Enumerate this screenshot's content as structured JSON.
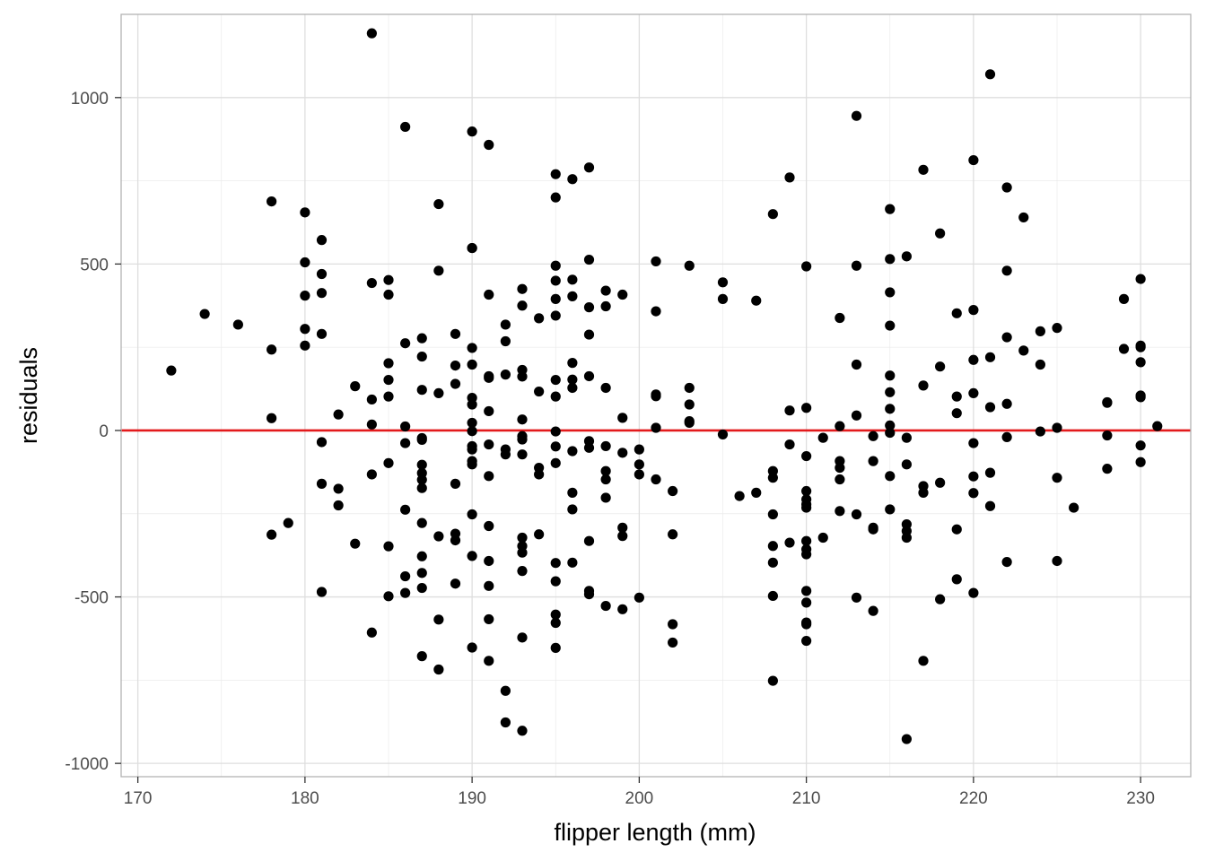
{
  "chart_data": {
    "type": "scatter",
    "title": "",
    "xlabel": "flipper length (mm)",
    "ylabel": "residuals",
    "xlim": [
      169,
      233
    ],
    "ylim": [
      -1040,
      1250
    ],
    "xticks": [
      170,
      180,
      190,
      200,
      210,
      220,
      230
    ],
    "yticks": [
      -1000,
      -500,
      0,
      500,
      1000
    ],
    "xtick_labels": [
      "170",
      "180",
      "190",
      "200",
      "210",
      "220",
      "230"
    ],
    "ytick_labels": [
      "-1000",
      "-500",
      "0",
      "500",
      "1000"
    ],
    "grid": true,
    "reference_line": {
      "y": 0,
      "color": "#e31a1c"
    },
    "point_color": "#000000",
    "points": [
      [
        172,
        180
      ],
      [
        174,
        350
      ],
      [
        176,
        318
      ],
      [
        178,
        688
      ],
      [
        178,
        243
      ],
      [
        178,
        37
      ],
      [
        178,
        -313
      ],
      [
        179,
        -278
      ],
      [
        180,
        655
      ],
      [
        180,
        505
      ],
      [
        180,
        405
      ],
      [
        180,
        305
      ],
      [
        180,
        255
      ],
      [
        181,
        572
      ],
      [
        181,
        470
      ],
      [
        181,
        413
      ],
      [
        181,
        290
      ],
      [
        181,
        -35
      ],
      [
        181,
        -160
      ],
      [
        181,
        -485
      ],
      [
        182,
        48
      ],
      [
        182,
        -175
      ],
      [
        182,
        -225
      ],
      [
        183,
        133
      ],
      [
        183,
        -340
      ],
      [
        184,
        443
      ],
      [
        184,
        93
      ],
      [
        184,
        18
      ],
      [
        184,
        -132
      ],
      [
        184,
        -607
      ],
      [
        184,
        1193
      ],
      [
        185,
        452
      ],
      [
        185,
        408
      ],
      [
        185,
        202
      ],
      [
        185,
        152
      ],
      [
        185,
        102
      ],
      [
        185,
        -98
      ],
      [
        185,
        -348
      ],
      [
        185,
        -498
      ],
      [
        186,
        912
      ],
      [
        186,
        262
      ],
      [
        186,
        12
      ],
      [
        186,
        -38
      ],
      [
        186,
        -238
      ],
      [
        186,
        -438
      ],
      [
        186,
        -488
      ],
      [
        187,
        277
      ],
      [
        187,
        222
      ],
      [
        187,
        122
      ],
      [
        187,
        -23
      ],
      [
        187,
        -28
      ],
      [
        187,
        -103
      ],
      [
        187,
        -128
      ],
      [
        187,
        -148
      ],
      [
        187,
        -173
      ],
      [
        187,
        -278
      ],
      [
        187,
        -378
      ],
      [
        187,
        -428
      ],
      [
        187,
        -473
      ],
      [
        187,
        -678
      ],
      [
        188,
        680
      ],
      [
        188,
        480
      ],
      [
        188,
        112
      ],
      [
        188,
        -318
      ],
      [
        188,
        -568
      ],
      [
        188,
        -718
      ],
      [
        189,
        290
      ],
      [
        189,
        195
      ],
      [
        189,
        140
      ],
      [
        189,
        -160
      ],
      [
        189,
        -310
      ],
      [
        189,
        -330
      ],
      [
        189,
        -460
      ],
      [
        190,
        898
      ],
      [
        190,
        548
      ],
      [
        190,
        548
      ],
      [
        190,
        248
      ],
      [
        190,
        198
      ],
      [
        190,
        98
      ],
      [
        190,
        78
      ],
      [
        190,
        23
      ],
      [
        190,
        -2
      ],
      [
        190,
        -47
      ],
      [
        190,
        -57
      ],
      [
        190,
        -92
      ],
      [
        190,
        -102
      ],
      [
        190,
        -252
      ],
      [
        190,
        -377
      ],
      [
        190,
        -652
      ],
      [
        191,
        858
      ],
      [
        191,
        408
      ],
      [
        191,
        163
      ],
      [
        191,
        158
      ],
      [
        191,
        58
      ],
      [
        191,
        -42
      ],
      [
        191,
        -137
      ],
      [
        191,
        -287
      ],
      [
        191,
        -392
      ],
      [
        191,
        -467
      ],
      [
        191,
        -567
      ],
      [
        191,
        -692
      ],
      [
        192,
        318
      ],
      [
        192,
        268
      ],
      [
        192,
        168
      ],
      [
        192,
        -57
      ],
      [
        192,
        -72
      ],
      [
        192,
        -782
      ],
      [
        192,
        -877
      ],
      [
        193,
        425
      ],
      [
        193,
        375
      ],
      [
        193,
        182
      ],
      [
        193,
        162
      ],
      [
        193,
        33
      ],
      [
        193,
        -17
      ],
      [
        193,
        -27
      ],
      [
        193,
        -72
      ],
      [
        193,
        -322
      ],
      [
        193,
        -347
      ],
      [
        193,
        -367
      ],
      [
        193,
        -422
      ],
      [
        193,
        -622
      ],
      [
        193,
        -902
      ],
      [
        194,
        337
      ],
      [
        194,
        117
      ],
      [
        194,
        -112
      ],
      [
        194,
        -132
      ],
      [
        194,
        -312
      ],
      [
        195,
        770
      ],
      [
        195,
        700
      ],
      [
        195,
        495
      ],
      [
        195,
        450
      ],
      [
        195,
        395
      ],
      [
        195,
        345
      ],
      [
        195,
        152
      ],
      [
        195,
        102
      ],
      [
        195,
        -3
      ],
      [
        195,
        -48
      ],
      [
        195,
        -98
      ],
      [
        195,
        -398
      ],
      [
        195,
        -453
      ],
      [
        195,
        -553
      ],
      [
        195,
        -578
      ],
      [
        195,
        -653
      ],
      [
        196,
        755
      ],
      [
        196,
        453
      ],
      [
        196,
        403
      ],
      [
        196,
        203
      ],
      [
        196,
        153
      ],
      [
        196,
        128
      ],
      [
        196,
        -62
      ],
      [
        196,
        -187
      ],
      [
        196,
        -237
      ],
      [
        196,
        -397
      ],
      [
        197,
        790
      ],
      [
        197,
        513
      ],
      [
        197,
        370
      ],
      [
        197,
        288
      ],
      [
        197,
        163
      ],
      [
        197,
        -32
      ],
      [
        197,
        -52
      ],
      [
        197,
        -332
      ],
      [
        197,
        -482
      ],
      [
        197,
        -492
      ],
      [
        198,
        420
      ],
      [
        198,
        373
      ],
      [
        198,
        128
      ],
      [
        198,
        -47
      ],
      [
        198,
        -122
      ],
      [
        198,
        -147
      ],
      [
        198,
        -202
      ],
      [
        198,
        -527
      ],
      [
        199,
        408
      ],
      [
        199,
        38
      ],
      [
        199,
        -67
      ],
      [
        199,
        -292
      ],
      [
        199,
        -317
      ],
      [
        199,
        -537
      ],
      [
        200,
        -57
      ],
      [
        200,
        -102
      ],
      [
        200,
        -132
      ],
      [
        200,
        -502
      ],
      [
        201,
        508
      ],
      [
        201,
        358
      ],
      [
        201,
        108
      ],
      [
        201,
        103
      ],
      [
        201,
        8
      ],
      [
        201,
        -147
      ],
      [
        202,
        -182
      ],
      [
        202,
        -312
      ],
      [
        202,
        -582
      ],
      [
        202,
        -637
      ],
      [
        203,
        495
      ],
      [
        203,
        128
      ],
      [
        203,
        78
      ],
      [
        203,
        28
      ],
      [
        203,
        23
      ],
      [
        205,
        445
      ],
      [
        205,
        395
      ],
      [
        205,
        -12
      ],
      [
        206,
        -197
      ],
      [
        207,
        390
      ],
      [
        207,
        -187
      ],
      [
        208,
        650
      ],
      [
        208,
        -122
      ],
      [
        208,
        -142
      ],
      [
        208,
        -252
      ],
      [
        208,
        -347
      ],
      [
        208,
        -397
      ],
      [
        208,
        -497
      ],
      [
        208,
        -752
      ],
      [
        209,
        760
      ],
      [
        209,
        60
      ],
      [
        209,
        -42
      ],
      [
        209,
        -337
      ],
      [
        210,
        493
      ],
      [
        210,
        68
      ],
      [
        210,
        -77
      ],
      [
        210,
        -182
      ],
      [
        210,
        -207
      ],
      [
        210,
        -222
      ],
      [
        210,
        -232
      ],
      [
        210,
        -332
      ],
      [
        210,
        -357
      ],
      [
        210,
        -372
      ],
      [
        210,
        -482
      ],
      [
        210,
        -517
      ],
      [
        210,
        -577
      ],
      [
        210,
        -582
      ],
      [
        210,
        -632
      ],
      [
        211,
        -22
      ],
      [
        211,
        -322
      ],
      [
        212,
        338
      ],
      [
        212,
        13
      ],
      [
        212,
        -92
      ],
      [
        212,
        -112
      ],
      [
        212,
        -147
      ],
      [
        212,
        -242
      ],
      [
        213,
        945
      ],
      [
        213,
        495
      ],
      [
        213,
        198
      ],
      [
        213,
        45
      ],
      [
        213,
        -252
      ],
      [
        213,
        -502
      ],
      [
        214,
        -17
      ],
      [
        214,
        -92
      ],
      [
        214,
        -292
      ],
      [
        214,
        -297
      ],
      [
        214,
        -542
      ],
      [
        215,
        665
      ],
      [
        215,
        515
      ],
      [
        215,
        415
      ],
      [
        215,
        315
      ],
      [
        215,
        165
      ],
      [
        215,
        115
      ],
      [
        215,
        65
      ],
      [
        215,
        15
      ],
      [
        215,
        -7
      ],
      [
        215,
        -137
      ],
      [
        215,
        -237
      ],
      [
        216,
        523
      ],
      [
        216,
        -22
      ],
      [
        216,
        -102
      ],
      [
        216,
        -282
      ],
      [
        216,
        -302
      ],
      [
        216,
        -322
      ],
      [
        216,
        -927
      ],
      [
        217,
        783
      ],
      [
        217,
        135
      ],
      [
        217,
        -167
      ],
      [
        217,
        -187
      ],
      [
        217,
        -692
      ],
      [
        218,
        592
      ],
      [
        218,
        192
      ],
      [
        218,
        -157
      ],
      [
        218,
        -507
      ],
      [
        219,
        352
      ],
      [
        219,
        102
      ],
      [
        219,
        52
      ],
      [
        219,
        -297
      ],
      [
        219,
        -447
      ],
      [
        220,
        812
      ],
      [
        220,
        362
      ],
      [
        220,
        212
      ],
      [
        220,
        112
      ],
      [
        220,
        -38
      ],
      [
        220,
        -138
      ],
      [
        220,
        -188
      ],
      [
        220,
        -488
      ],
      [
        221,
        1070
      ],
      [
        221,
        220
      ],
      [
        221,
        70
      ],
      [
        221,
        -127
      ],
      [
        221,
        -227
      ],
      [
        222,
        730
      ],
      [
        222,
        480
      ],
      [
        222,
        280
      ],
      [
        222,
        80
      ],
      [
        222,
        -20
      ],
      [
        222,
        -395
      ],
      [
        223,
        640
      ],
      [
        223,
        240
      ],
      [
        224,
        298
      ],
      [
        224,
        198
      ],
      [
        224,
        -3
      ],
      [
        225,
        308
      ],
      [
        225,
        8
      ],
      [
        225,
        -142
      ],
      [
        225,
        -392
      ],
      [
        226,
        -232
      ],
      [
        228,
        85
      ],
      [
        228,
        83
      ],
      [
        228,
        -15
      ],
      [
        228,
        -115
      ],
      [
        229,
        395
      ],
      [
        229,
        245
      ],
      [
        230,
        455
      ],
      [
        230,
        255
      ],
      [
        230,
        250
      ],
      [
        230,
        205
      ],
      [
        230,
        105
      ],
      [
        230,
        100
      ],
      [
        230,
        -45
      ],
      [
        230,
        -95
      ],
      [
        231,
        13
      ]
    ]
  }
}
